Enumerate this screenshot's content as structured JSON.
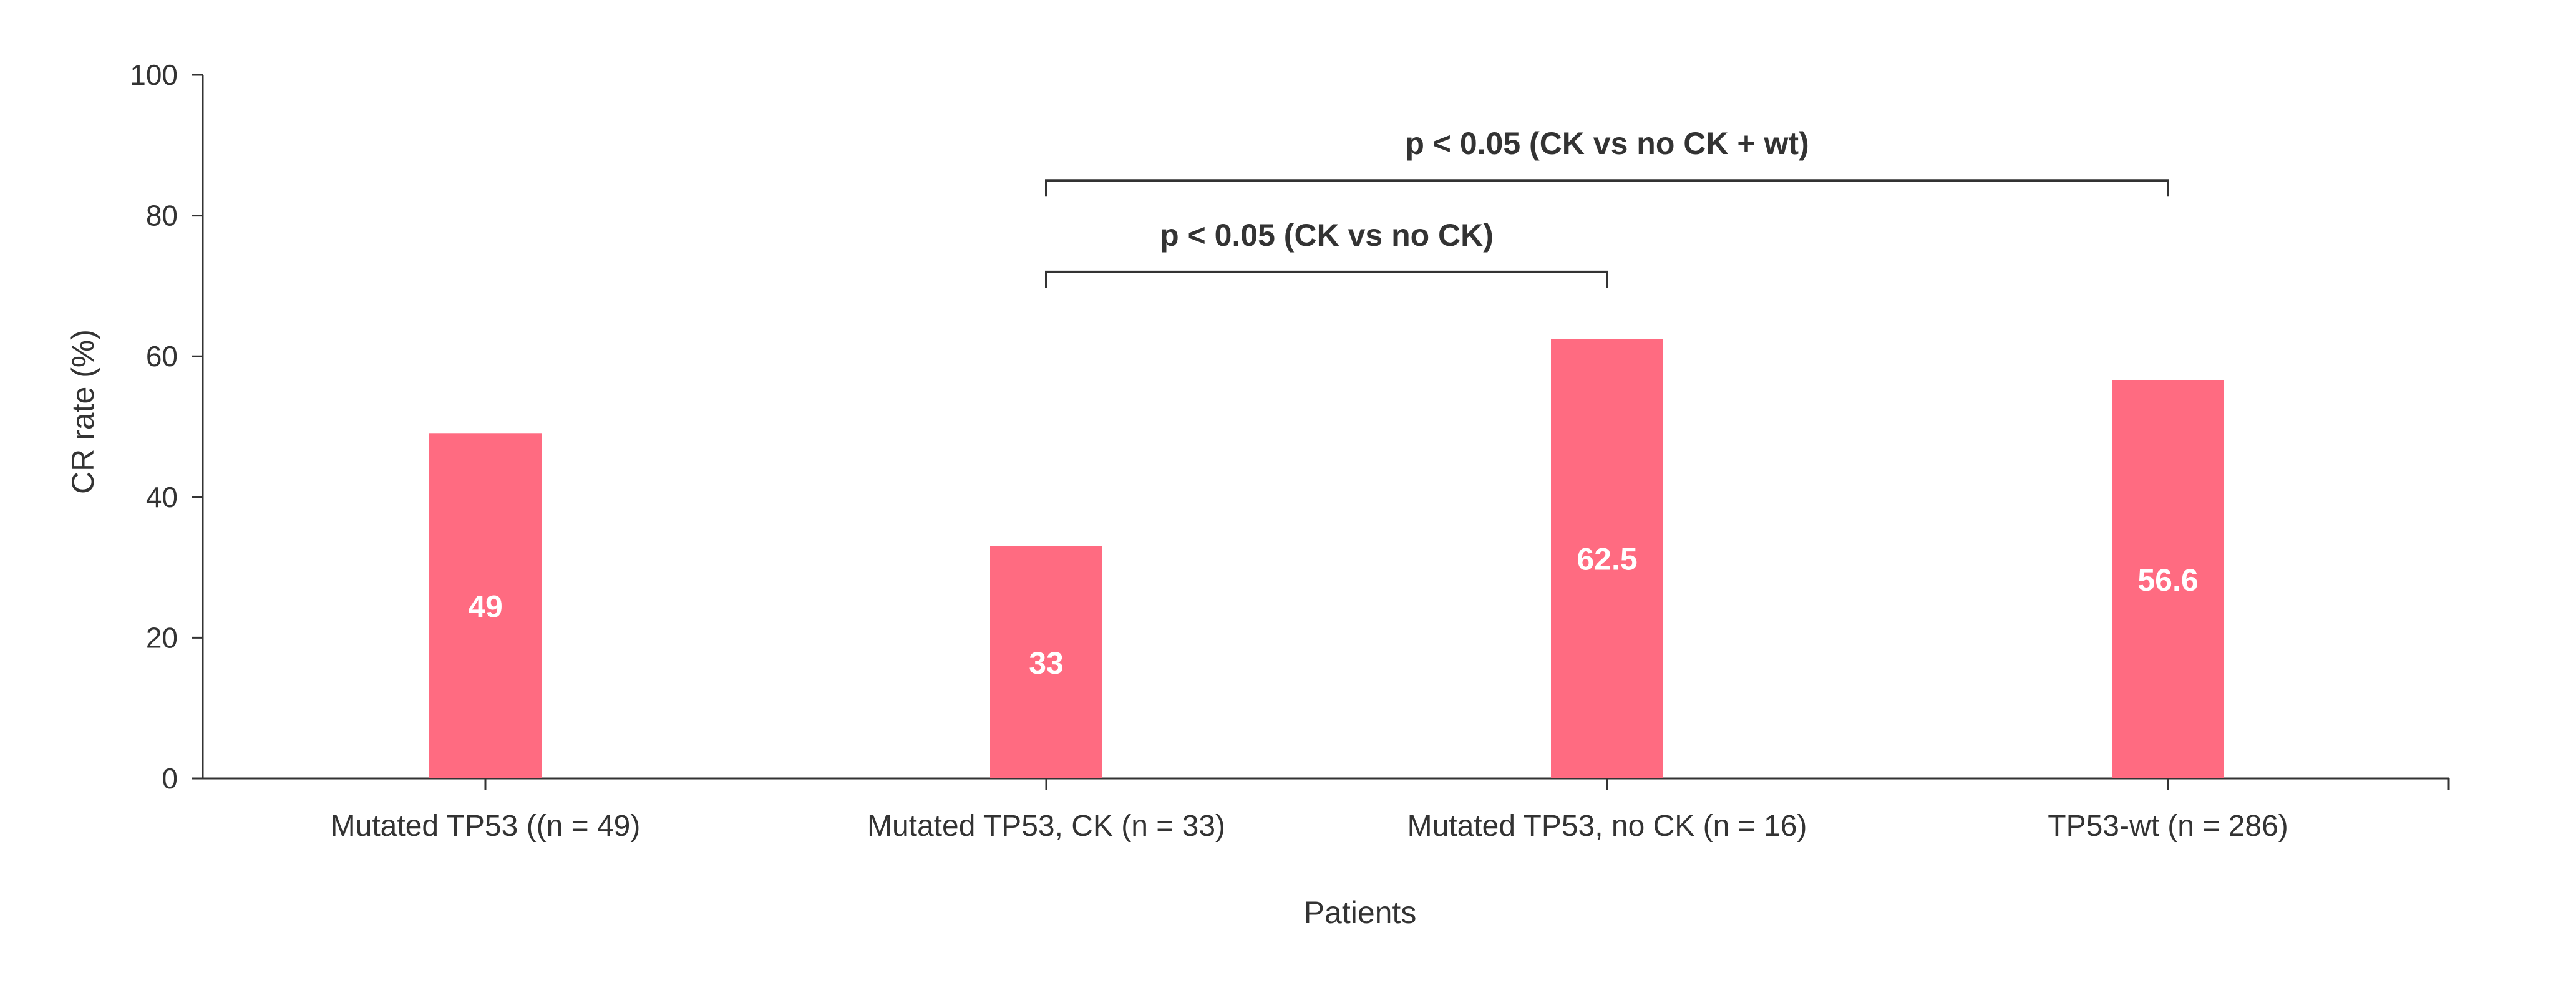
{
  "chart_data": {
    "type": "bar",
    "categories": [
      "Mutated TP53 ((n = 49)",
      "Mutated TP53, CK (n = 33)",
      "Mutated TP53, no CK (n = 16)",
      "TP53-wt (n = 286)"
    ],
    "values": [
      49,
      33,
      62.5,
      56.6
    ],
    "data_labels": [
      "49",
      "33",
      "62.5",
      "56.6"
    ],
    "title": "",
    "xlabel": "Patients",
    "ylabel": "CR rate (%)",
    "ylim": [
      0,
      100
    ],
    "yticks": [
      0,
      20,
      40,
      60,
      80,
      100
    ],
    "grid": false,
    "legend": "none",
    "bar_color": "#ff6b81",
    "annotations": [
      {
        "text": "p < 0.05 (CK vs no CK)",
        "from": 1,
        "to": 2,
        "height": 72
      },
      {
        "text": "p < 0.05 (CK vs no CK + wt)",
        "from": 1,
        "to": 3,
        "height": 85
      }
    ]
  }
}
